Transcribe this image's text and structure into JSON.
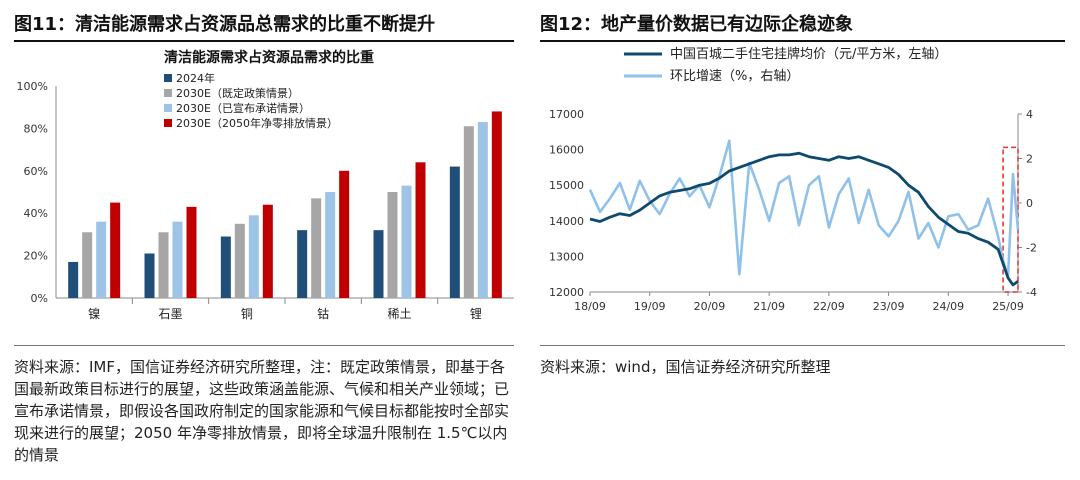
{
  "left": {
    "figure_title": "图11：清洁能源需求占资源品总需求的比重不断提升",
    "source": "资料来源：IMF，国信证券经济研究所整理，注：既定政策情景，即基于各国最新政策目标进行的展望，这些政策涵盖能源、气候和相关产业领域；已宣布承诺情景，即假设各国政府制定的国家能源和气候目标都能按时全部实现来进行的展望；2050 年净零排放情景，即将全球温升限制在 1.5℃以内的情景"
  },
  "right": {
    "figure_title": "图12：地产量价数据已有边际企稳迹象",
    "source": "资料来源：wind，国信证券经济研究所整理"
  },
  "colors": {
    "s2024": "#1f4e79",
    "stated": "#a6a6a6",
    "announced": "#9dc3e6",
    "netzero": "#c00000",
    "price": "#0d4a6e",
    "mom": "#8fc1ea",
    "highlight": "#e03030"
  },
  "chart_data": [
    {
      "type": "bar",
      "title": "清洁能源需求占资源品需求的比重",
      "categories": [
        "镍",
        "石墨",
        "铜",
        "钴",
        "稀土",
        "锂"
      ],
      "ylim": [
        0,
        100
      ],
      "yticks": [
        "0%",
        "20%",
        "40%",
        "60%",
        "80%",
        "100%"
      ],
      "legend_position": "top-left",
      "series": [
        {
          "name": "2024年",
          "color_key": "s2024",
          "values": [
            17,
            21,
            29,
            32,
            32,
            62
          ]
        },
        {
          "name": "2030E（既定政策情景）",
          "color_key": "stated",
          "values": [
            31,
            31,
            35,
            47,
            50,
            81
          ]
        },
        {
          "name": "2030E（已宣布承诺情景）",
          "color_key": "announced",
          "values": [
            36,
            36,
            39,
            50,
            53,
            83
          ]
        },
        {
          "name": "2030E（2050年净零排放情景）",
          "color_key": "netzero",
          "values": [
            45,
            43,
            44,
            60,
            64,
            88
          ]
        }
      ]
    },
    {
      "type": "line",
      "x_ticks": [
        "18/09",
        "19/09",
        "20/09",
        "21/09",
        "22/09",
        "23/09",
        "24/09",
        "25/09"
      ],
      "x_range": [
        "2018-09",
        "2025-11"
      ],
      "y_left": {
        "ylim": [
          12000,
          17000
        ],
        "ticks": [
          "12000",
          "13000",
          "14000",
          "15000",
          "16000",
          "17000"
        ]
      },
      "y_right": {
        "ylim": [
          -4,
          4
        ],
        "ticks": [
          "-4",
          "-2",
          "0",
          "2",
          "4"
        ]
      },
      "legend_position": "top-left",
      "highlight_box": {
        "x_from": "2025-08",
        "x_to": "2025-11",
        "axis": "right",
        "y_from": -4,
        "y_to": 2.5
      },
      "series": [
        {
          "name": "中国百城二手住宅挂牌均价（元/平方米，左轴）",
          "axis": "left",
          "color_key": "price",
          "x": [
            "2018-09",
            "2018-11",
            "2019-01",
            "2019-03",
            "2019-05",
            "2019-07",
            "2019-09",
            "2019-11",
            "2020-01",
            "2020-03",
            "2020-05",
            "2020-07",
            "2020-09",
            "2020-11",
            "2021-01",
            "2021-03",
            "2021-05",
            "2021-07",
            "2021-09",
            "2021-11",
            "2022-01",
            "2022-03",
            "2022-05",
            "2022-07",
            "2022-09",
            "2022-11",
            "2023-01",
            "2023-03",
            "2023-05",
            "2023-07",
            "2023-09",
            "2023-11",
            "2024-01",
            "2024-03",
            "2024-05",
            "2024-07",
            "2024-09",
            "2024-11",
            "2025-01",
            "2025-03",
            "2025-05",
            "2025-07",
            "2025-08",
            "2025-09",
            "2025-10",
            "2025-11"
          ],
          "values": [
            14050,
            13980,
            14100,
            14200,
            14150,
            14300,
            14500,
            14700,
            14800,
            14850,
            14900,
            15000,
            15050,
            15200,
            15400,
            15500,
            15600,
            15700,
            15800,
            15850,
            15850,
            15900,
            15800,
            15750,
            15700,
            15800,
            15750,
            15800,
            15700,
            15600,
            15500,
            15300,
            15000,
            14800,
            14400,
            14100,
            13900,
            13700,
            13650,
            13500,
            13400,
            13200,
            12800,
            12400,
            12200,
            12300
          ]
        },
        {
          "name": "环比增速（%，右轴）",
          "axis": "right",
          "color_key": "mom",
          "x": [
            "2018-09",
            "2018-11",
            "2019-01",
            "2019-03",
            "2019-05",
            "2019-07",
            "2019-09",
            "2019-11",
            "2020-01",
            "2020-03",
            "2020-05",
            "2020-07",
            "2020-09",
            "2020-11",
            "2021-01",
            "2021-03",
            "2021-05",
            "2021-07",
            "2021-09",
            "2021-11",
            "2022-01",
            "2022-03",
            "2022-05",
            "2022-07",
            "2022-09",
            "2022-11",
            "2023-01",
            "2023-03",
            "2023-05",
            "2023-07",
            "2023-09",
            "2023-11",
            "2024-01",
            "2024-03",
            "2024-05",
            "2024-07",
            "2024-09",
            "2024-11",
            "2025-01",
            "2025-03",
            "2025-05",
            "2025-07",
            "2025-08",
            "2025-09",
            "2025-10",
            "2025-11"
          ],
          "values": [
            0.6,
            -0.4,
            0.2,
            0.9,
            -0.3,
            1.0,
            0.1,
            -0.5,
            0.4,
            1.1,
            0.3,
            0.8,
            -0.2,
            1.2,
            2.8,
            -3.2,
            1.8,
            0.6,
            -0.8,
            0.9,
            1.2,
            -1.0,
            0.8,
            1.2,
            -1.1,
            0.4,
            1.1,
            -0.9,
            0.6,
            -1.0,
            -1.5,
            -0.8,
            0.5,
            -1.6,
            -0.9,
            -2.0,
            -0.6,
            -0.5,
            -1.2,
            -1.0,
            0.2,
            -1.5,
            -2.6,
            -3.3,
            1.3,
            -1.2
          ]
        }
      ]
    }
  ]
}
